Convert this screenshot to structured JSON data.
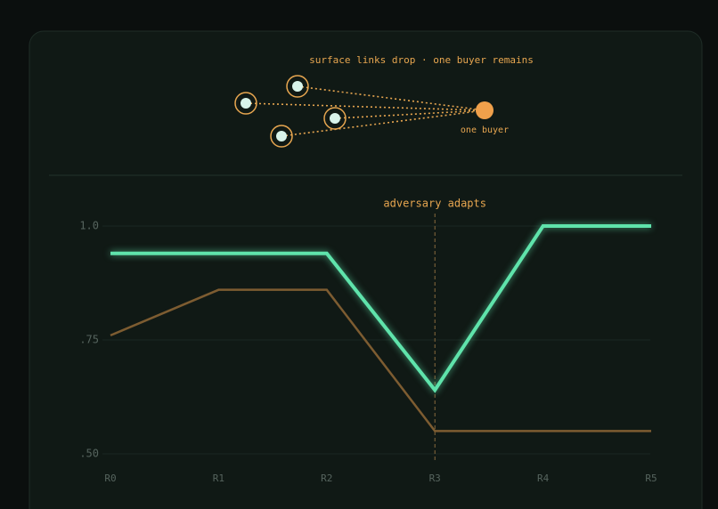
{
  "diagram": {
    "title": "surface links drop · one buyer remains",
    "target_label": "one buyer"
  },
  "chart_data": {
    "type": "line",
    "categories": [
      "R0",
      "R1",
      "R2",
      "R3",
      "R4",
      "R5"
    ],
    "series": [
      {
        "color": "#5fe3ab",
        "values": [
          0.94,
          0.94,
          0.94,
          0.64,
          1.0,
          1.0
        ]
      },
      {
        "color": "#7d5c31",
        "values": [
          0.76,
          0.86,
          0.86,
          0.55,
          0.55,
          0.55
        ]
      }
    ],
    "ylim": [
      0.5,
      1.0
    ],
    "yticks": [
      {
        "value": 0.5,
        "label": ".50"
      },
      {
        "value": 0.75,
        "label": ".75"
      },
      {
        "value": 1.0,
        "label": "1.0"
      }
    ],
    "grid": true,
    "annotation": {
      "text": "adversary adapts",
      "x": "R3"
    }
  }
}
